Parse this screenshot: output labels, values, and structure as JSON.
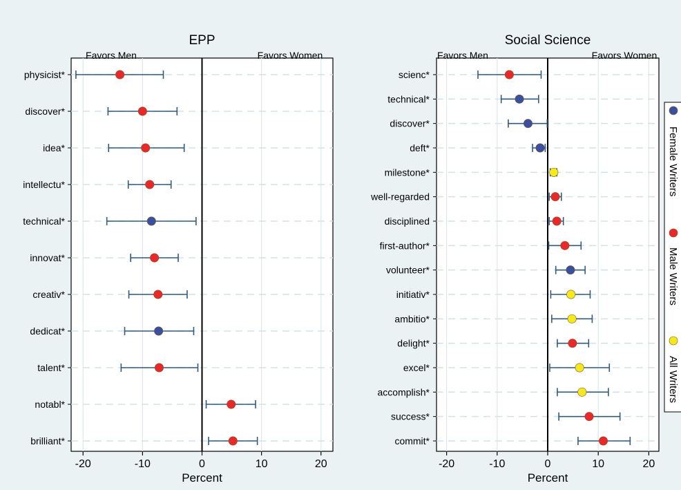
{
  "colors": {
    "background": "#eaf2f3",
    "plot_area": "#ffffff",
    "female": "#3a4fa0",
    "male": "#e8282b",
    "all": "#f5e81c",
    "error_bar": "#2e5b7e"
  },
  "legend": {
    "placement": "right-vertical",
    "entries": [
      {
        "label": "Female Writers",
        "group": "female"
      },
      {
        "label": "Male Writers",
        "group": "male"
      },
      {
        "label": "All Writers",
        "group": "all"
      }
    ]
  },
  "chart_data": [
    {
      "type": "scatter",
      "subtype": "dot-with-confidence-interval",
      "title": "EPP",
      "left_label": "Favors Men",
      "right_label": "Favors Women",
      "xlabel": "Percent",
      "xlim": [
        -22,
        22
      ],
      "xticks": [
        -20,
        -10,
        0,
        10,
        20
      ],
      "grid": true,
      "points": [
        {
          "term": "physicist*",
          "value": -13.8,
          "ci": [
            -21.2,
            -6.5
          ],
          "group": "male"
        },
        {
          "term": "discover*",
          "value": -10.0,
          "ci": [
            -15.8,
            -4.2
          ],
          "group": "male"
        },
        {
          "term": "idea*",
          "value": -9.5,
          "ci": [
            -15.7,
            -3.0
          ],
          "group": "male"
        },
        {
          "term": "intellectu*",
          "value": -8.8,
          "ci": [
            -12.4,
            -5.2
          ],
          "group": "male"
        },
        {
          "term": "technical*",
          "value": -8.5,
          "ci": [
            -16.0,
            -1.0
          ],
          "group": "female"
        },
        {
          "term": "innovat*",
          "value": -8.0,
          "ci": [
            -12.0,
            -4.0
          ],
          "group": "male"
        },
        {
          "term": "creativ*",
          "value": -7.4,
          "ci": [
            -12.3,
            -2.5
          ],
          "group": "male"
        },
        {
          "term": "dedicat*",
          "value": -7.3,
          "ci": [
            -13.0,
            -1.4
          ],
          "group": "female"
        },
        {
          "term": "talent*",
          "value": -7.2,
          "ci": [
            -13.6,
            -0.7
          ],
          "group": "male"
        },
        {
          "term": "notabl*",
          "value": 4.9,
          "ci": [
            0.7,
            9.0
          ],
          "group": "male"
        },
        {
          "term": "brilliant*",
          "value": 5.2,
          "ci": [
            1.1,
            9.3
          ],
          "group": "male"
        }
      ]
    },
    {
      "type": "scatter",
      "subtype": "dot-with-confidence-interval",
      "title": "Social Science",
      "left_label": "Favors Men",
      "right_label": "Favors Women",
      "xlabel": "Percent",
      "xlim": [
        -22,
        22
      ],
      "xticks": [
        -20,
        -10,
        0,
        10,
        20
      ],
      "grid": true,
      "points": [
        {
          "term": "scienc*",
          "value": -7.6,
          "ci": [
            -13.8,
            -1.3
          ],
          "group": "male"
        },
        {
          "term": "technical*",
          "value": -5.6,
          "ci": [
            -9.2,
            -1.8
          ],
          "group": "female"
        },
        {
          "term": "discover*",
          "value": -3.9,
          "ci": [
            -7.8,
            -0.1
          ],
          "group": "female"
        },
        {
          "term": "deft*",
          "value": -1.5,
          "ci": [
            -3.0,
            -0.5
          ],
          "group": "female"
        },
        {
          "term": "milestone*",
          "value": 1.2,
          "ci": [
            0.5,
            1.8
          ],
          "group": "all"
        },
        {
          "term": "well-regarded",
          "value": 1.5,
          "ci": [
            0.3,
            2.7
          ],
          "group": "male"
        },
        {
          "term": "disciplined",
          "value": 1.8,
          "ci": [
            0.3,
            3.1
          ],
          "group": "male"
        },
        {
          "term": "first-author*",
          "value": 3.4,
          "ci": [
            0.2,
            6.6
          ],
          "group": "male"
        },
        {
          "term": "volunteer*",
          "value": 4.5,
          "ci": [
            1.6,
            7.4
          ],
          "group": "female"
        },
        {
          "term": "initiativ*",
          "value": 4.6,
          "ci": [
            0.6,
            8.4
          ],
          "group": "all"
        },
        {
          "term": "ambitio*",
          "value": 4.8,
          "ci": [
            0.8,
            8.8
          ],
          "group": "all"
        },
        {
          "term": "delight*",
          "value": 4.9,
          "ci": [
            1.9,
            8.1
          ],
          "group": "male"
        },
        {
          "term": "excel*",
          "value": 6.3,
          "ci": [
            0.4,
            12.2
          ],
          "group": "all"
        },
        {
          "term": "accomplish*",
          "value": 6.8,
          "ci": [
            1.9,
            12.0
          ],
          "group": "all"
        },
        {
          "term": "success*",
          "value": 8.2,
          "ci": [
            2.2,
            14.3
          ],
          "group": "male"
        },
        {
          "term": "commit*",
          "value": 11.0,
          "ci": [
            6.0,
            16.3
          ],
          "group": "male"
        }
      ]
    }
  ]
}
